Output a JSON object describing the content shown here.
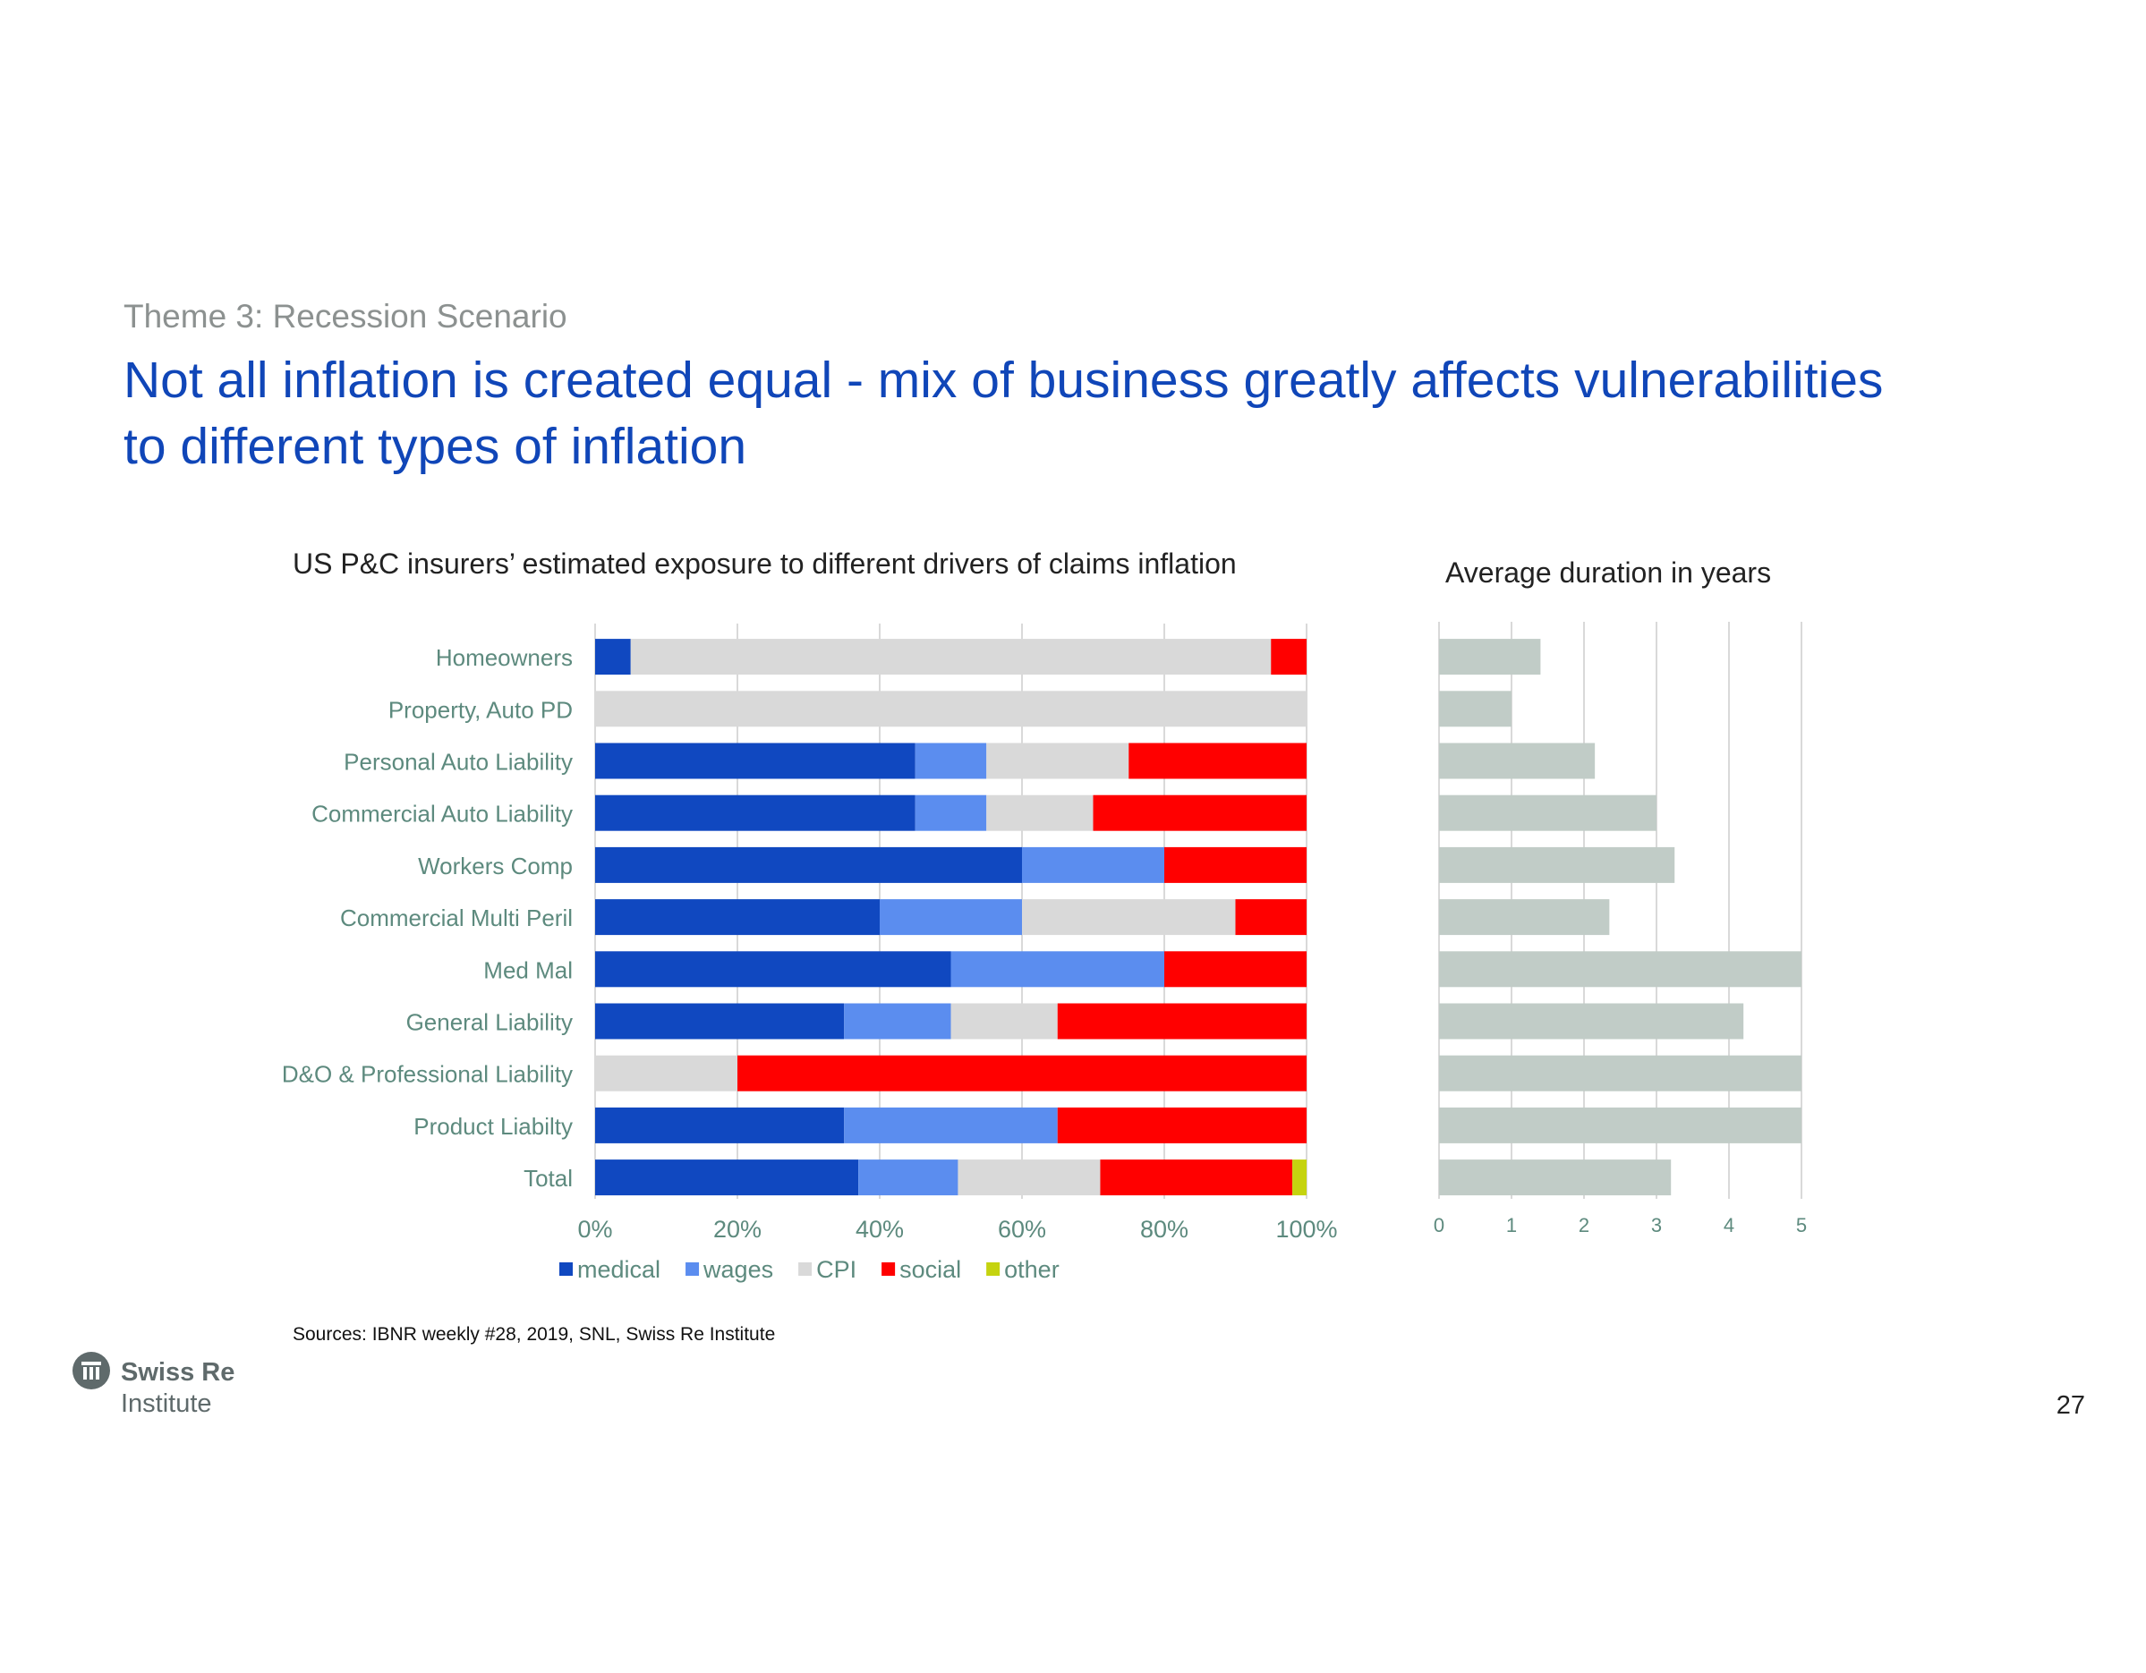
{
  "header": {
    "theme": "Theme 3: Recession Scenario",
    "title_line1": "Not all inflation is created equal - mix of business greatly affects vulnerabilities",
    "title_line2": "to different types of inflation"
  },
  "chart_data": [
    {
      "type": "bar",
      "orientation": "horizontal",
      "stacked": true,
      "title": "US P&C insurers’ estimated exposure to different drivers of claims inflation",
      "categories": [
        "Homeowners",
        "Property, Auto PD",
        "Personal Auto Liability",
        "Commercial Auto Liability",
        "Workers Comp",
        "Commercial Multi Peril",
        "Med Mal",
        "General Liability",
        "D&O & Professional Liability",
        "Product Liabilty",
        "Total"
      ],
      "series": [
        {
          "name": "medical",
          "color": "#1048c0",
          "values": [
            5,
            0,
            45,
            45,
            60,
            40,
            50,
            35,
            0,
            35,
            37
          ]
        },
        {
          "name": "wages",
          "color": "#5b8def",
          "values": [
            0,
            0,
            10,
            10,
            20,
            20,
            30,
            15,
            0,
            30,
            14
          ]
        },
        {
          "name": "CPI",
          "color": "#d9d9d9",
          "values": [
            90,
            100,
            20,
            15,
            0,
            30,
            0,
            15,
            20,
            0,
            20
          ]
        },
        {
          "name": "social",
          "color": "#ff0000",
          "values": [
            5,
            0,
            25,
            30,
            20,
            10,
            20,
            35,
            80,
            35,
            27
          ]
        },
        {
          "name": "other",
          "color": "#c5d30f",
          "values": [
            0,
            0,
            0,
            0,
            0,
            0,
            0,
            0,
            0,
            0,
            2
          ]
        }
      ],
      "xlim": [
        0,
        100
      ],
      "xticks": [
        "0%",
        "20%",
        "40%",
        "60%",
        "80%",
        "100%"
      ],
      "legend_position": "bottom",
      "grid": true
    },
    {
      "type": "bar",
      "orientation": "horizontal",
      "title": "Average duration in years",
      "categories": [
        "Homeowners",
        "Property, Auto PD",
        "Personal Auto Liability",
        "Commercial Auto Liability",
        "Workers Comp",
        "Commercial Multi Peril",
        "Med Mal",
        "General Liability",
        "D&O & Professional Liability",
        "Product Liabilty",
        "Total"
      ],
      "values": [
        1.4,
        1.0,
        2.15,
        3.0,
        3.25,
        2.35,
        5.0,
        4.2,
        5.0,
        5.0,
        3.2
      ],
      "color": "#c1ccc7",
      "xlim": [
        0,
        5
      ],
      "xticks": [
        "0",
        "1",
        "2",
        "3",
        "4",
        "5"
      ],
      "grid": true
    }
  ],
  "source": "Sources: IBNR weekly #28, 2019, SNL, Swiss Re Institute",
  "logo": {
    "name": "Swiss Re",
    "sub": "Institute"
  },
  "page_number": "27"
}
